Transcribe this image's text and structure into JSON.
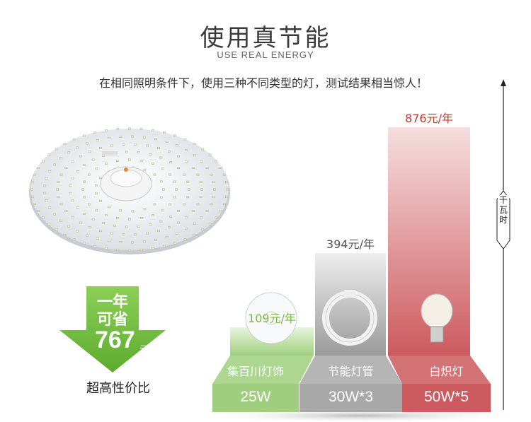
{
  "header": {
    "title": "使用真节能",
    "subtitle": "USE REAL ENERGY",
    "intro": "在相同照明条件下，使用三种不同类型的灯，测试结果相当惊人！"
  },
  "savings": {
    "line1": "一年",
    "line2": "可省",
    "amount": "767",
    "unit": "元",
    "slogan": "超高性价比"
  },
  "chart_data": {
    "type": "bar",
    "categories": [
      "集百川灯饰",
      "节能灯管",
      "白炽灯"
    ],
    "values": [
      109,
      394,
      876
    ],
    "value_labels": [
      "109元/年",
      "394元/年",
      "876元/年"
    ],
    "power_labels": [
      "25W",
      "30W*3",
      "50W*5"
    ],
    "ylabel": "千瓦时",
    "colors": [
      "#9fcf7e",
      "#a8a8a8",
      "#cc5a5e"
    ],
    "label_colors": [
      "#7ab648",
      "#555555",
      "#c0392b"
    ]
  }
}
